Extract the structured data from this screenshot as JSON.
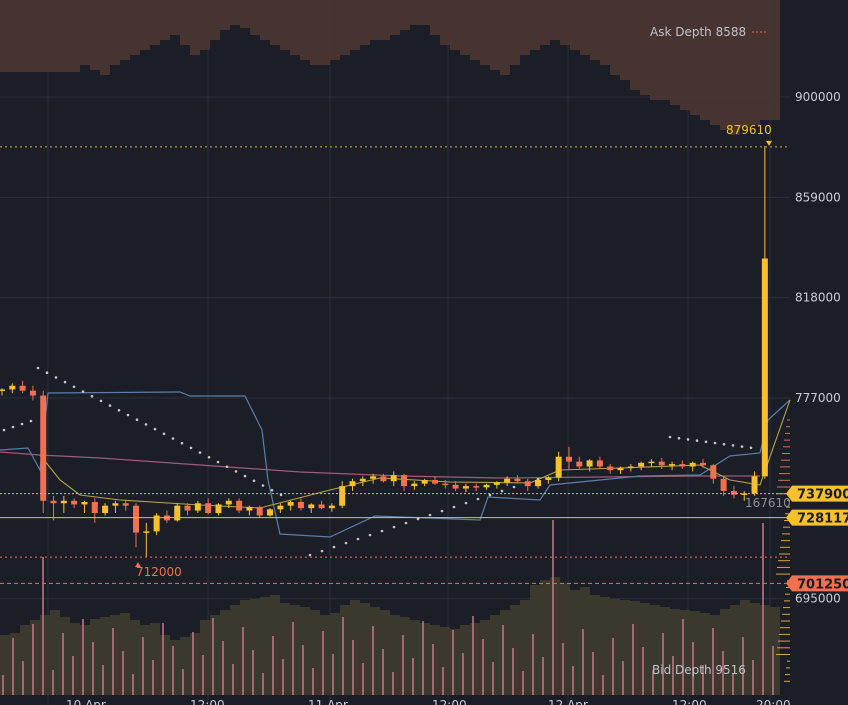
{
  "chart_data": {
    "type": "candlestick",
    "y_axis": {
      "ticks": [
        900000,
        859000,
        818000,
        777000,
        695000
      ],
      "tick_labels": [
        "900000",
        "859000",
        "818000",
        "777000",
        "695000"
      ]
    },
    "x_axis": {
      "tick_labels": [
        "10 Apr",
        "12:00",
        "11 Apr",
        "12:00",
        "12 Apr",
        "12:00",
        "20:00"
      ]
    },
    "price_badges": [
      {
        "label": "737900",
        "value": 737900,
        "color": "#f5c12e"
      },
      {
        "label": "728117",
        "value": 728117,
        "color": "#f5c12e"
      },
      {
        "label": "701250",
        "value": 701250,
        "color": "#f0704f"
      }
    ],
    "annotations": {
      "ask_depth": "Ask Depth 8588",
      "bid_depth": "Bid Depth 9516",
      "high_label": "879610",
      "low_label": "712000",
      "side_value": "167610"
    },
    "candles": [
      [
        780000,
        781000,
        778000,
        780500
      ],
      [
        780500,
        783000,
        779000,
        782000
      ],
      [
        782000,
        784000,
        779000,
        780000
      ],
      [
        780000,
        782000,
        776000,
        778000
      ],
      [
        778000,
        780000,
        730000,
        735000
      ],
      [
        735000,
        737000,
        727000,
        734000
      ],
      [
        734000,
        737000,
        730000,
        735000
      ],
      [
        735000,
        736000,
        732000,
        733500
      ],
      [
        733500,
        735000,
        730000,
        734500
      ],
      [
        734500,
        736000,
        726000,
        730000
      ],
      [
        730000,
        734000,
        729000,
        733000
      ],
      [
        733000,
        735000,
        730000,
        734000
      ],
      [
        734000,
        735500,
        731000,
        733000
      ],
      [
        733000,
        734000,
        716000,
        722000
      ],
      [
        722000,
        726000,
        712000,
        722500
      ],
      [
        722500,
        730000,
        721000,
        729000
      ],
      [
        729000,
        731000,
        726000,
        727000
      ],
      [
        727000,
        734000,
        726500,
        733000
      ],
      [
        733000,
        734000,
        729000,
        731000
      ],
      [
        731000,
        735000,
        730000,
        734000
      ],
      [
        734000,
        736000,
        729500,
        730000
      ],
      [
        730000,
        734000,
        729000,
        733500
      ],
      [
        733500,
        736000,
        732000,
        735000
      ],
      [
        735000,
        736000,
        730000,
        731000
      ],
      [
        731000,
        733000,
        729000,
        732500
      ],
      [
        732500,
        733000,
        728000,
        729000
      ],
      [
        729000,
        732000,
        728500,
        731500
      ],
      [
        731500,
        734000,
        730000,
        733000
      ],
      [
        733000,
        735000,
        731000,
        734500
      ],
      [
        734500,
        736000,
        731000,
        732000
      ],
      [
        732000,
        734000,
        730000,
        733500
      ],
      [
        733500,
        735000,
        731500,
        732000
      ],
      [
        732000,
        734000,
        730500,
        733000
      ],
      [
        733000,
        743000,
        732000,
        741000
      ],
      [
        741000,
        744000,
        739000,
        743000
      ],
      [
        743000,
        745000,
        741000,
        744000
      ],
      [
        744000,
        746000,
        742000,
        745000
      ],
      [
        745000,
        746000,
        742500,
        743000
      ],
      [
        743000,
        747000,
        741000,
        745500
      ],
      [
        745500,
        746000,
        739000,
        741000
      ],
      [
        741000,
        743000,
        739500,
        742000
      ],
      [
        742000,
        744000,
        741000,
        743500
      ],
      [
        743500,
        745000,
        741500,
        742000
      ],
      [
        742000,
        743500,
        740000,
        741500
      ],
      [
        741500,
        743000,
        739000,
        740000
      ],
      [
        740000,
        742000,
        738500,
        741000
      ],
      [
        741000,
        742000,
        739000,
        740500
      ],
      [
        740500,
        742000,
        739500,
        741500
      ],
      [
        741500,
        743000,
        740000,
        742500
      ],
      [
        742500,
        745000,
        741000,
        744000
      ],
      [
        744000,
        745500,
        742000,
        743000
      ],
      [
        743000,
        744000,
        739000,
        741000
      ],
      [
        741000,
        744000,
        740000,
        743500
      ],
      [
        743500,
        745000,
        742000,
        744500
      ],
      [
        744500,
        755000,
        743000,
        753000
      ],
      [
        753000,
        757000,
        748000,
        751000
      ],
      [
        751000,
        753000,
        748000,
        749000
      ],
      [
        749000,
        752000,
        747000,
        751500
      ],
      [
        751500,
        753000,
        748000,
        749000
      ],
      [
        749000,
        750000,
        746000,
        747500
      ],
      [
        747500,
        749000,
        746000,
        748500
      ],
      [
        748500,
        750000,
        747000,
        749000
      ],
      [
        749000,
        751000,
        747500,
        750500
      ],
      [
        750500,
        752000,
        749000,
        751000
      ],
      [
        751000,
        752500,
        748000,
        749500
      ],
      [
        749500,
        751000,
        747500,
        750000
      ],
      [
        750000,
        751500,
        748000,
        749000
      ],
      [
        749000,
        751000,
        747000,
        750500
      ],
      [
        750500,
        752000,
        748500,
        749500
      ],
      [
        749500,
        750000,
        742000,
        744000
      ],
      [
        744000,
        745000,
        737000,
        739000
      ],
      [
        739000,
        741000,
        736000,
        737500
      ],
      [
        737500,
        739000,
        735000,
        738000
      ],
      [
        738000,
        747000,
        737000,
        745000
      ],
      [
        745000,
        880000,
        744000,
        834000
      ]
    ]
  }
}
